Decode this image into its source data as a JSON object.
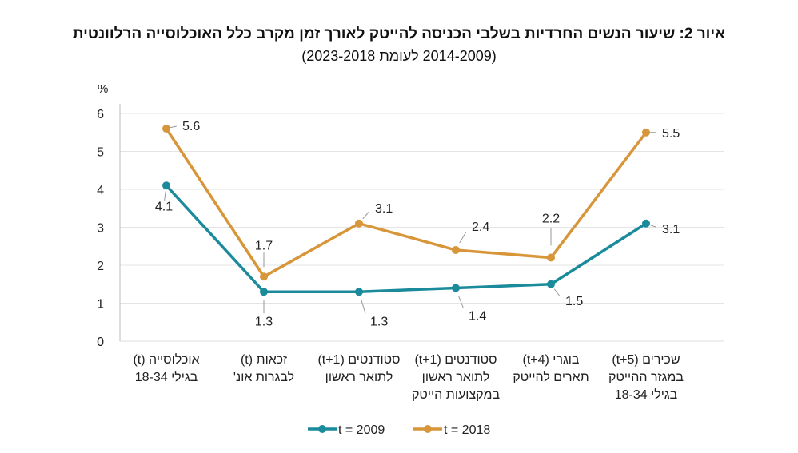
{
  "chart_data": {
    "type": "line",
    "title": "איור 2: שיעור הנשים החרדיות בשלבי הכניסה להייטק לאורך זמן מקרב כלל האוכלוסייה הרלוונטית",
    "subtitle": "(2014-2009 לעומת 2023-2018)",
    "ylabel": "%",
    "ylim": [
      0,
      6
    ],
    "yticks": [
      0,
      1,
      2,
      3,
      4,
      5,
      6
    ],
    "grid": true,
    "legend": "bottom",
    "categories": [
      [
        "אוכלוסייה (t)",
        "בגילי 18-34"
      ],
      [
        "זכאות (t)",
        "לבגרות אונ'"
      ],
      [
        "סטודנטים (t+1)",
        "לתואר ראשון"
      ],
      [
        "סטודנטים (t+1)",
        "לתואר ראשון",
        "במקצועות הייטק"
      ],
      [
        "בוגרי (t+4)",
        "תארים להייטק"
      ],
      [
        "שכירים (t+5)",
        "במגזר ההייטק",
        "בגילי 18-34"
      ]
    ],
    "series": [
      {
        "name": "t = 2009",
        "color": "#1b8b9b",
        "values": [
          4.1,
          1.3,
          1.3,
          1.4,
          1.5,
          3.1
        ]
      },
      {
        "name": "t = 2018",
        "color": "#d8963b",
        "values": [
          5.6,
          1.7,
          3.1,
          2.4,
          2.2,
          5.5
        ]
      }
    ]
  }
}
